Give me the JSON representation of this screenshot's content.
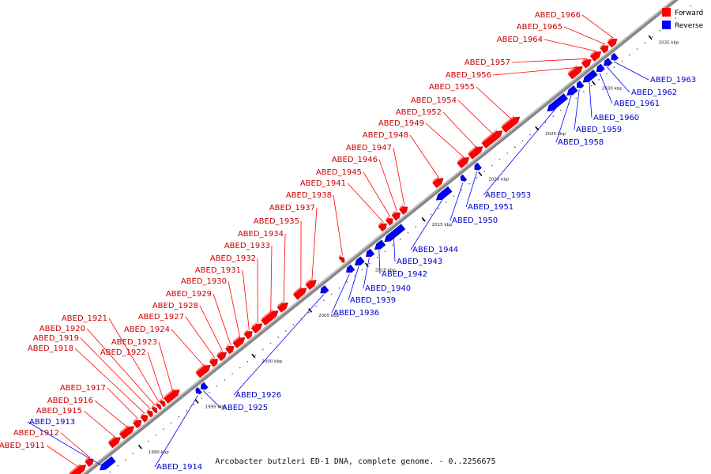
{
  "caption": "Arcobacter butzleri ED-1 DNA, complete genome. - 0..2256675",
  "legend": {
    "forward_label": "Forward",
    "reverse_label": "Reverse",
    "forward_color": "#ff0000",
    "reverse_color": "#0000ff"
  },
  "ticks": [
    "1990 kbp",
    "1995 kbp",
    "2000 kbp",
    "2005 kbp",
    "2010 kbp",
    "2015 kbp",
    "2020 kbp",
    "2025 kbp",
    "2030 kbp",
    "2035 kbp",
    "2040 kbp",
    "2045 kbp"
  ],
  "forward_genes": [
    "ABED_1911",
    "ABED_1912",
    "ABED_1915",
    "ABED_1916",
    "ABED_1917",
    "ABED_1918",
    "ABED_1919",
    "ABED_1920",
    "ABED_1921",
    "ABED_1922",
    "ABED_1923",
    "ABED_1924",
    "ABED_1927",
    "ABED_1928",
    "ABED_1929",
    "ABED_1930",
    "ABED_1931",
    "ABED_1932",
    "ABED_1933",
    "ABED_1934",
    "ABED_1935",
    "ABED_1937",
    "ABED_1938",
    "ABED_1941",
    "ABED_1945",
    "ABED_1946",
    "ABED_1947",
    "ABED_1948",
    "ABED_1949",
    "ABED_1952",
    "ABED_1954",
    "ABED_1955",
    "ABED_1956",
    "ABED_1957",
    "ABED_1964",
    "ABED_1965",
    "ABED_1966"
  ],
  "reverse_genes": [
    "ABED_1913",
    "ABED_1914",
    "ABED_1925",
    "ABED_1926",
    "ABED_1936",
    "ABED_1939",
    "ABED_1940",
    "ABED_1942",
    "ABED_1943",
    "ABED_1944",
    "ABED_1950",
    "ABED_1951",
    "ABED_1953",
    "ABED_1958",
    "ABED_1959",
    "ABED_1960",
    "ABED_1961",
    "ABED_1962",
    "ABED_1963"
  ]
}
